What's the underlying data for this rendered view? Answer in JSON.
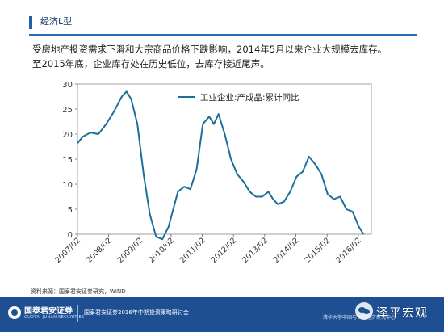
{
  "header": {
    "title": "经济L型"
  },
  "body": {
    "line1": "受房地产投资需求下滑和大宗商品价格下跌影响，2014年5月以来企业大规模去库存。",
    "line2": "至2015年底，企业库存处在历史低位，去库存接近尾声。"
  },
  "chart_data": {
    "type": "line",
    "title": "",
    "xlabel": "",
    "ylabel": "",
    "ylim": [
      0,
      30
    ],
    "yticks": [
      0,
      5,
      10,
      15,
      20,
      25,
      30
    ],
    "xtick_labels": [
      "2007/02",
      "2008/02",
      "2009/02",
      "2010/02",
      "2011/02",
      "2012/02",
      "2013/02",
      "2014/02",
      "2015/02",
      "2016/02"
    ],
    "legend_position": "top-center",
    "grid": false,
    "series": [
      {
        "name": "工业企业:产成品:累计同比",
        "color": "#1d6e9a",
        "x": [
          2007.08,
          2007.25,
          2007.5,
          2007.75,
          2008.0,
          2008.25,
          2008.5,
          2008.65,
          2008.8,
          2009.0,
          2009.2,
          2009.4,
          2009.6,
          2009.8,
          2010.0,
          2010.15,
          2010.3,
          2010.5,
          2010.7,
          2010.9,
          2011.1,
          2011.3,
          2011.45,
          2011.6,
          2011.8,
          2012.0,
          2012.2,
          2012.4,
          2012.6,
          2012.8,
          2013.0,
          2013.2,
          2013.35,
          2013.5,
          2013.7,
          2013.9,
          2014.1,
          2014.3,
          2014.5,
          2014.7,
          2014.9,
          2015.1,
          2015.3,
          2015.5,
          2015.7,
          2015.9,
          2016.1,
          2016.25
        ],
        "values": [
          18.2,
          19.5,
          20.3,
          20.0,
          22.0,
          24.5,
          27.5,
          28.5,
          27.0,
          22.0,
          12.0,
          4.0,
          -0.5,
          -1.0,
          1.5,
          5.0,
          8.5,
          9.5,
          9.0,
          13.0,
          22.0,
          23.5,
          22.0,
          24.0,
          20.0,
          15.0,
          12.0,
          10.5,
          8.5,
          7.5,
          7.5,
          8.5,
          7.0,
          6.0,
          6.5,
          8.5,
          11.5,
          12.5,
          15.5,
          14.0,
          12.0,
          8.0,
          7.0,
          7.5,
          5.0,
          4.5,
          1.5,
          0.0
        ]
      }
    ]
  },
  "source": "资料来源：国泰君安证券研究，WIND",
  "footer": {
    "brand": "国泰君安证券",
    "brand_en": "GUOTAI JUNAN SECURITIES",
    "event": "国泰君安证券2016年中期投资策略研讨会",
    "watermark_small": "清华大学中国与世界经济研究中心",
    "watermark": "泽平宏观"
  }
}
